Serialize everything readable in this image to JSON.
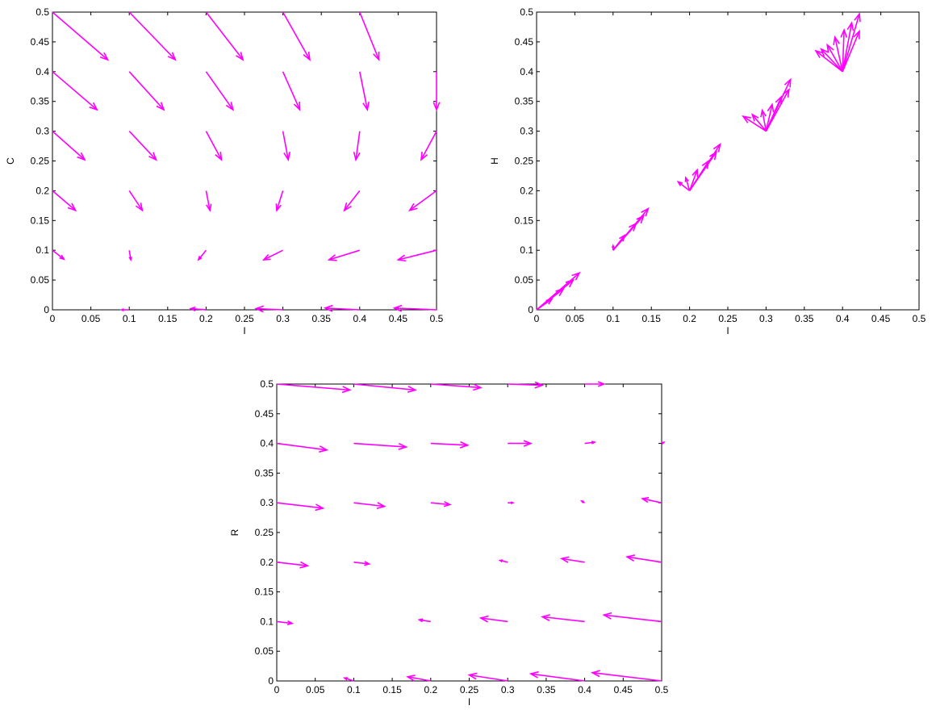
{
  "chart_data": [
    {
      "type": "quiver",
      "xlabel": "I",
      "ylabel": "C",
      "xlim": [
        0,
        0.5
      ],
      "ylim": [
        0,
        0.5
      ],
      "xticks": [
        "0",
        "0.05",
        "0.1",
        "0.15",
        "0.2",
        "0.25",
        "0.3",
        "0.35",
        "0.4",
        "0.45",
        "0.5"
      ],
      "yticks": [
        "0",
        "0.05",
        "0.1",
        "0.15",
        "0.2",
        "0.25",
        "0.3",
        "0.35",
        "0.4",
        "0.45",
        "0.5"
      ],
      "arrow_color": "#ff00ff",
      "vectors": [
        {
          "x": 0.1,
          "y": 0.0,
          "u": -0.01,
          "v": 0.0
        },
        {
          "x": 0.2,
          "y": 0.0,
          "u": -0.02,
          "v": 0.002
        },
        {
          "x": 0.3,
          "y": 0.0,
          "u": -0.035,
          "v": 0.002
        },
        {
          "x": 0.4,
          "y": 0.0,
          "u": -0.045,
          "v": 0.003
        },
        {
          "x": 0.5,
          "y": 0.0,
          "u": -0.055,
          "v": 0.003
        },
        {
          "x": 0.0,
          "y": 0.1,
          "u": 0.015,
          "v": -0.015
        },
        {
          "x": 0.1,
          "y": 0.1,
          "u": 0.002,
          "v": -0.016
        },
        {
          "x": 0.2,
          "y": 0.1,
          "u": -0.01,
          "v": -0.016
        },
        {
          "x": 0.3,
          "y": 0.1,
          "u": -0.025,
          "v": -0.016
        },
        {
          "x": 0.4,
          "y": 0.1,
          "u": -0.04,
          "v": -0.016
        },
        {
          "x": 0.5,
          "y": 0.1,
          "u": -0.05,
          "v": -0.016
        },
        {
          "x": 0.0,
          "y": 0.2,
          "u": 0.03,
          "v": -0.033
        },
        {
          "x": 0.1,
          "y": 0.2,
          "u": 0.017,
          "v": -0.033
        },
        {
          "x": 0.2,
          "y": 0.2,
          "u": 0.005,
          "v": -0.033
        },
        {
          "x": 0.3,
          "y": 0.2,
          "u": -0.008,
          "v": -0.033
        },
        {
          "x": 0.4,
          "y": 0.2,
          "u": -0.02,
          "v": -0.033
        },
        {
          "x": 0.5,
          "y": 0.2,
          "u": -0.035,
          "v": -0.033
        },
        {
          "x": 0.0,
          "y": 0.3,
          "u": 0.042,
          "v": -0.048
        },
        {
          "x": 0.1,
          "y": 0.3,
          "u": 0.035,
          "v": -0.048
        },
        {
          "x": 0.2,
          "y": 0.3,
          "u": 0.02,
          "v": -0.048
        },
        {
          "x": 0.3,
          "y": 0.3,
          "u": 0.007,
          "v": -0.048
        },
        {
          "x": 0.4,
          "y": 0.3,
          "u": -0.005,
          "v": -0.048
        },
        {
          "x": 0.5,
          "y": 0.3,
          "u": -0.02,
          "v": -0.048
        },
        {
          "x": 0.0,
          "y": 0.4,
          "u": 0.058,
          "v": -0.064
        },
        {
          "x": 0.1,
          "y": 0.4,
          "u": 0.045,
          "v": -0.064
        },
        {
          "x": 0.2,
          "y": 0.4,
          "u": 0.035,
          "v": -0.064
        },
        {
          "x": 0.3,
          "y": 0.4,
          "u": 0.022,
          "v": -0.064
        },
        {
          "x": 0.4,
          "y": 0.4,
          "u": 0.01,
          "v": -0.064
        },
        {
          "x": 0.5,
          "y": 0.4,
          "u": 0.0,
          "v": -0.064
        },
        {
          "x": 0.0,
          "y": 0.5,
          "u": 0.072,
          "v": -0.08
        },
        {
          "x": 0.1,
          "y": 0.5,
          "u": 0.06,
          "v": -0.08
        },
        {
          "x": 0.2,
          "y": 0.5,
          "u": 0.048,
          "v": -0.08
        },
        {
          "x": 0.3,
          "y": 0.5,
          "u": 0.035,
          "v": -0.08
        },
        {
          "x": 0.4,
          "y": 0.5,
          "u": 0.025,
          "v": -0.08
        }
      ]
    },
    {
      "type": "quiver",
      "xlabel": "I",
      "ylabel": "H",
      "xlim": [
        0,
        0.5
      ],
      "ylim": [
        0,
        0.5
      ],
      "xticks": [
        "0",
        "0.05",
        "0.1",
        "0.15",
        "0.2",
        "0.25",
        "0.3",
        "0.35",
        "0.4",
        "0.45",
        "0.5"
      ],
      "yticks": [
        "0",
        "0.05",
        "0.1",
        "0.15",
        "0.2",
        "0.25",
        "0.3",
        "0.35",
        "0.4",
        "0.45",
        "0.5"
      ],
      "arrow_color": "#ff00ff",
      "vectors": [
        {
          "x": 0.0,
          "y": 0.0,
          "u": 0.056,
          "v": 0.062
        },
        {
          "x": 0.0,
          "y": 0.0,
          "u": 0.048,
          "v": 0.05
        },
        {
          "x": 0.0,
          "y": 0.0,
          "u": 0.035,
          "v": 0.035
        },
        {
          "x": 0.0,
          "y": 0.0,
          "u": 0.02,
          "v": 0.018
        },
        {
          "x": 0.1,
          "y": 0.1,
          "u": 0.046,
          "v": 0.07
        },
        {
          "x": 0.1,
          "y": 0.1,
          "u": 0.04,
          "v": 0.058
        },
        {
          "x": 0.1,
          "y": 0.1,
          "u": 0.03,
          "v": 0.045
        },
        {
          "x": 0.1,
          "y": 0.1,
          "u": 0.015,
          "v": 0.025
        },
        {
          "x": 0.1,
          "y": 0.1,
          "u": 0.0,
          "v": 0.008
        },
        {
          "x": 0.2,
          "y": 0.2,
          "u": 0.04,
          "v": 0.078
        },
        {
          "x": 0.2,
          "y": 0.2,
          "u": 0.035,
          "v": 0.065
        },
        {
          "x": 0.2,
          "y": 0.2,
          "u": 0.025,
          "v": 0.05
        },
        {
          "x": 0.2,
          "y": 0.2,
          "u": 0.01,
          "v": 0.035
        },
        {
          "x": 0.2,
          "y": 0.2,
          "u": -0.005,
          "v": 0.022
        },
        {
          "x": 0.2,
          "y": 0.2,
          "u": -0.015,
          "v": 0.015
        },
        {
          "x": 0.3,
          "y": 0.3,
          "u": 0.032,
          "v": 0.087
        },
        {
          "x": 0.3,
          "y": 0.3,
          "u": 0.03,
          "v": 0.07
        },
        {
          "x": 0.3,
          "y": 0.3,
          "u": 0.02,
          "v": 0.058
        },
        {
          "x": 0.3,
          "y": 0.3,
          "u": 0.008,
          "v": 0.045
        },
        {
          "x": 0.3,
          "y": 0.3,
          "u": -0.005,
          "v": 0.035
        },
        {
          "x": 0.3,
          "y": 0.3,
          "u": -0.018,
          "v": 0.028
        },
        {
          "x": 0.3,
          "y": 0.3,
          "u": -0.03,
          "v": 0.025
        },
        {
          "x": 0.4,
          "y": 0.4,
          "u": 0.022,
          "v": 0.097
        },
        {
          "x": 0.4,
          "y": 0.4,
          "u": 0.022,
          "v": 0.068
        },
        {
          "x": 0.4,
          "y": 0.4,
          "u": 0.012,
          "v": 0.082
        },
        {
          "x": 0.4,
          "y": 0.4,
          "u": 0.002,
          "v": 0.07
        },
        {
          "x": 0.4,
          "y": 0.4,
          "u": -0.01,
          "v": 0.058
        },
        {
          "x": 0.4,
          "y": 0.4,
          "u": -0.02,
          "v": 0.045
        },
        {
          "x": 0.4,
          "y": 0.4,
          "u": -0.028,
          "v": 0.038
        },
        {
          "x": 0.4,
          "y": 0.4,
          "u": -0.035,
          "v": 0.035
        }
      ]
    },
    {
      "type": "quiver",
      "xlabel": "I",
      "ylabel": "R",
      "xlim": [
        0,
        0.5
      ],
      "ylim": [
        0,
        0.5
      ],
      "xticks": [
        "0",
        "0.05",
        "0.1",
        "0.15",
        "0.2",
        "0.25",
        "0.3",
        "0.35",
        "0.4",
        "0.45",
        "0.5"
      ],
      "yticks": [
        "0",
        "0.05",
        "0.1",
        "0.15",
        "0.2",
        "0.25",
        "0.3",
        "0.35",
        "0.4",
        "0.45",
        "0.5"
      ],
      "arrow_color": "#ff00ff",
      "vectors": [
        {
          "x": 0.0,
          "y": 0.0,
          "u": 0.0,
          "v": 0.0
        },
        {
          "x": 0.1,
          "y": 0.0,
          "u": -0.012,
          "v": 0.005
        },
        {
          "x": 0.2,
          "y": 0.0,
          "u": -0.03,
          "v": 0.007
        },
        {
          "x": 0.3,
          "y": 0.0,
          "u": -0.05,
          "v": 0.01
        },
        {
          "x": 0.4,
          "y": 0.0,
          "u": -0.07,
          "v": 0.012
        },
        {
          "x": 0.5,
          "y": 0.0,
          "u": -0.09,
          "v": 0.014
        },
        {
          "x": 0.0,
          "y": 0.1,
          "u": 0.02,
          "v": -0.003
        },
        {
          "x": 0.1,
          "y": 0.1,
          "u": 0.0,
          "v": 0.0
        },
        {
          "x": 0.2,
          "y": 0.1,
          "u": -0.015,
          "v": 0.003
        },
        {
          "x": 0.3,
          "y": 0.1,
          "u": -0.035,
          "v": 0.006
        },
        {
          "x": 0.4,
          "y": 0.1,
          "u": -0.055,
          "v": 0.008
        },
        {
          "x": 0.5,
          "y": 0.1,
          "u": -0.075,
          "v": 0.011
        },
        {
          "x": 0.0,
          "y": 0.2,
          "u": 0.04,
          "v": -0.006
        },
        {
          "x": 0.1,
          "y": 0.2,
          "u": 0.02,
          "v": -0.003
        },
        {
          "x": 0.2,
          "y": 0.2,
          "u": 0.0,
          "v": 0.0
        },
        {
          "x": 0.3,
          "y": 0.2,
          "u": -0.01,
          "v": 0.003
        },
        {
          "x": 0.4,
          "y": 0.2,
          "u": -0.03,
          "v": 0.006
        },
        {
          "x": 0.5,
          "y": 0.2,
          "u": -0.045,
          "v": 0.009
        },
        {
          "x": 0.0,
          "y": 0.3,
          "u": 0.06,
          "v": -0.009
        },
        {
          "x": 0.1,
          "y": 0.3,
          "u": 0.04,
          "v": -0.006
        },
        {
          "x": 0.2,
          "y": 0.3,
          "u": 0.025,
          "v": -0.003
        },
        {
          "x": 0.3,
          "y": 0.3,
          "u": 0.007,
          "v": 0.0
        },
        {
          "x": 0.4,
          "y": 0.3,
          "u": -0.004,
          "v": 0.003
        },
        {
          "x": 0.5,
          "y": 0.3,
          "u": -0.025,
          "v": 0.007
        },
        {
          "x": 0.0,
          "y": 0.4,
          "u": 0.065,
          "v": -0.011
        },
        {
          "x": 0.1,
          "y": 0.4,
          "u": 0.068,
          "v": -0.006
        },
        {
          "x": 0.2,
          "y": 0.4,
          "u": 0.048,
          "v": -0.003
        },
        {
          "x": 0.3,
          "y": 0.4,
          "u": 0.03,
          "v": 0.0
        },
        {
          "x": 0.4,
          "y": 0.4,
          "u": 0.013,
          "v": 0.002
        },
        {
          "x": 0.5,
          "y": 0.4,
          "u": 0.003,
          "v": 0.002
        },
        {
          "x": 0.0,
          "y": 0.5,
          "u": 0.095,
          "v": -0.01
        },
        {
          "x": 0.1,
          "y": 0.5,
          "u": 0.08,
          "v": -0.01
        },
        {
          "x": 0.2,
          "y": 0.5,
          "u": 0.065,
          "v": -0.006
        },
        {
          "x": 0.3,
          "y": 0.5,
          "u": 0.045,
          "v": -0.002
        },
        {
          "x": 0.4,
          "y": 0.5,
          "u": 0.025,
          "v": 0.0
        }
      ]
    }
  ]
}
